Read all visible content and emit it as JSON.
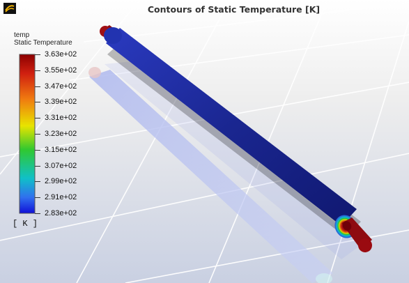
{
  "window": {
    "title": "Contours of Static Temperature [K]"
  },
  "legend": {
    "field_name": "temp",
    "field_description": "Static Temperature",
    "unit": "[ K ]",
    "min_value": 283,
    "max_value": 363,
    "labels": [
      "3.63e+02",
      "3.55e+02",
      "3.47e+02",
      "3.39e+02",
      "3.31e+02",
      "3.23e+02",
      "3.15e+02",
      "3.07e+02",
      "2.99e+02",
      "2.91e+02",
      "2.83e+02"
    ],
    "colors": {
      "max": "#8c0000",
      "high": "#e05a10",
      "mid_high": "#e8e000",
      "mid": "#20c020",
      "mid_low": "#10b8c8",
      "low": "#2f6fe8",
      "min": "#1010d8"
    }
  },
  "scene": {
    "background_top": "#f2f2f2",
    "background_bottom": "#cfd6e6",
    "grid_color": "#ffffff",
    "outer_pipe_color": "#1c2fa0",
    "inner_core_color": "#8e0b10",
    "shadow_color": "#8fa0e0"
  },
  "icons": {
    "logo": "ansys-logo-icon"
  }
}
